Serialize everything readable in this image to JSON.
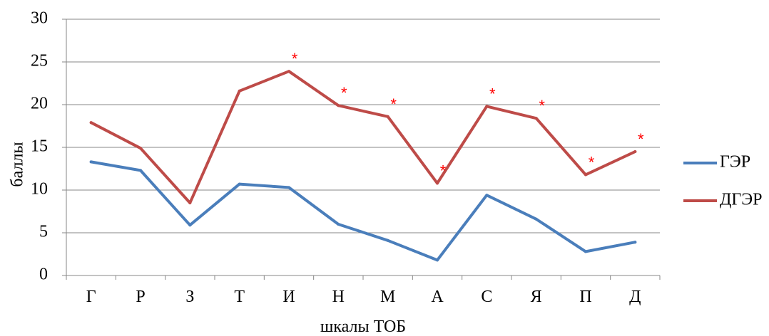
{
  "chart_data": {
    "type": "line",
    "categories": [
      "Г",
      "Р",
      "З",
      "Т",
      "И",
      "Н",
      "М",
      "А",
      "С",
      "Я",
      "П",
      "Д"
    ],
    "series": [
      {
        "name": "ГЭР",
        "color": "#4A7EBB",
        "values": [
          13.3,
          12.3,
          5.9,
          10.7,
          10.3,
          6.0,
          4.1,
          1.8,
          9.4,
          6.6,
          2.8,
          3.9
        ]
      },
      {
        "name": "ДГЭР",
        "color": "#BE4B48",
        "values": [
          17.9,
          14.9,
          8.5,
          21.6,
          23.9,
          19.9,
          18.6,
          10.8,
          19.8,
          18.4,
          11.8,
          14.5
        ]
      }
    ],
    "significance_marker": "*",
    "significance_color": "#FF0000",
    "significant_categories": [
      "И",
      "Н",
      "М",
      "А",
      "С",
      "Я",
      "П",
      "Д"
    ],
    "xlabel": "шкалы ТОБ",
    "ylabel": "баллы",
    "ylim": [
      0,
      30
    ],
    "yticks": [
      0,
      5,
      10,
      15,
      20,
      25,
      30
    ],
    "grid": true,
    "legend_position": "right"
  }
}
